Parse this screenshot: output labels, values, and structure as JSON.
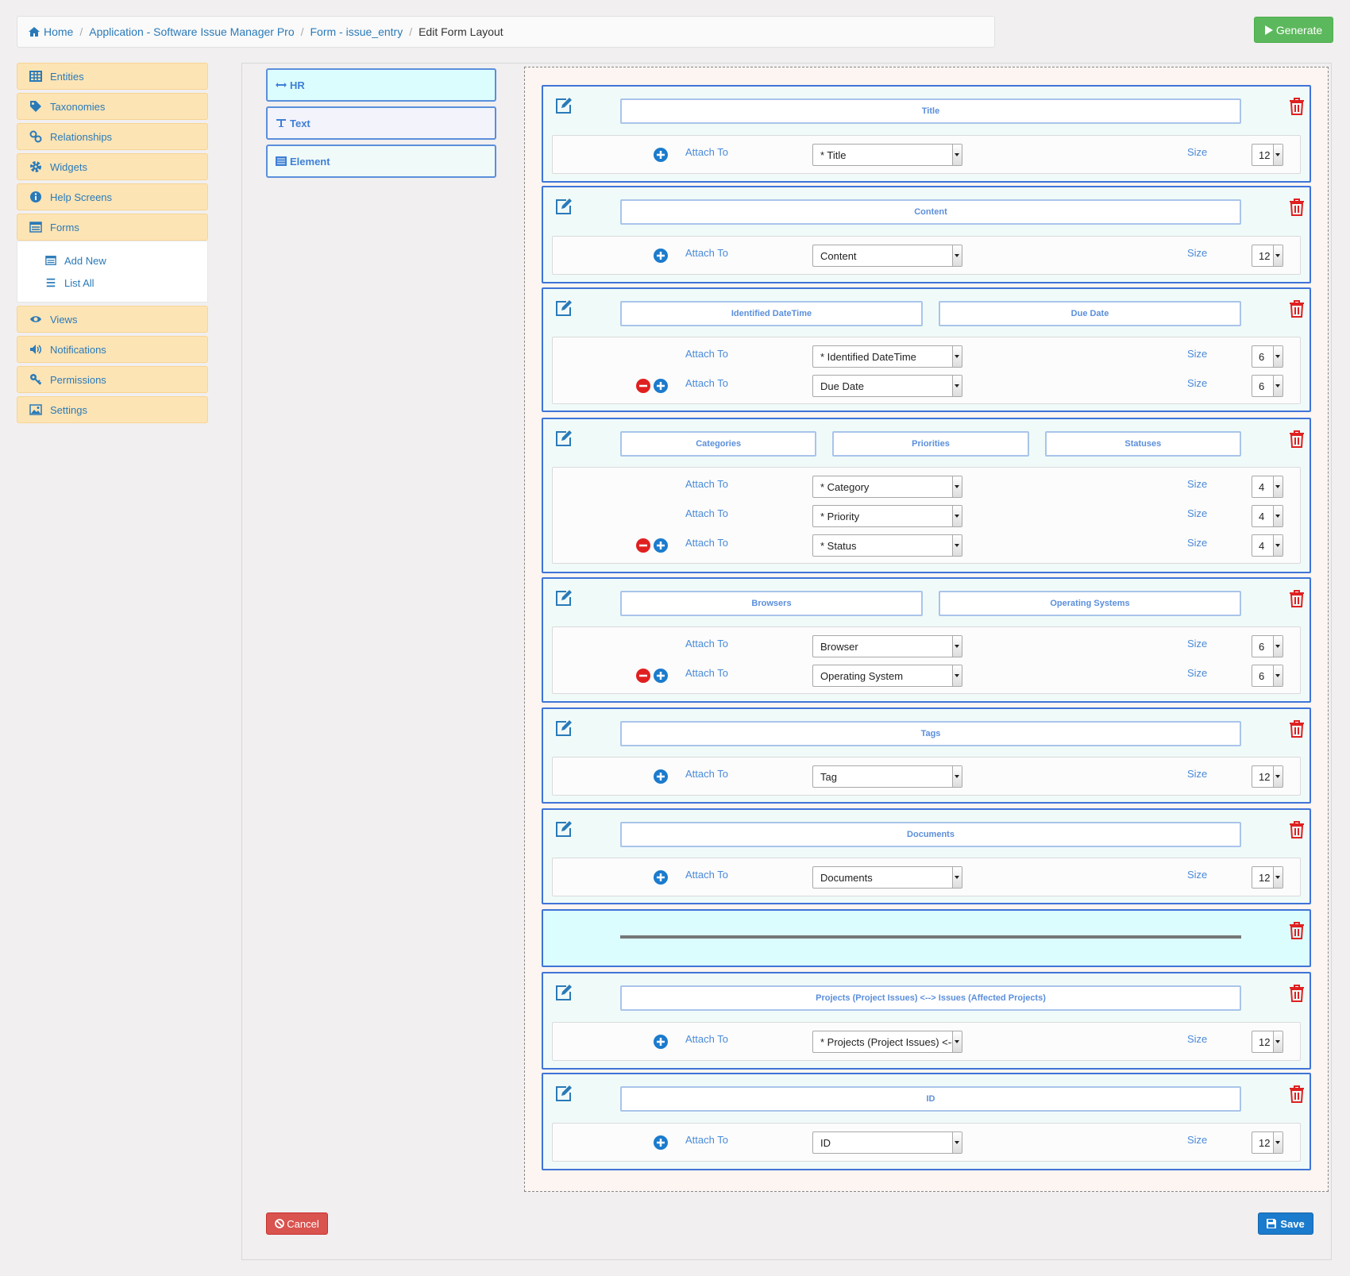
{
  "breadcrumb": {
    "home": "Home",
    "app": "Application - Software Issue Manager Pro",
    "form": "Form - issue_entry",
    "current": "Edit Form Layout"
  },
  "header": {
    "generate_label": "Generate"
  },
  "sidebar": {
    "items": [
      {
        "label": "Entities",
        "icon": "table-icon"
      },
      {
        "label": "Taxonomies",
        "icon": "tag-icon"
      },
      {
        "label": "Relationships",
        "icon": "link-icon"
      },
      {
        "label": "Widgets",
        "icon": "gear-icon"
      },
      {
        "label": "Help Screens",
        "icon": "info-icon"
      },
      {
        "label": "Forms",
        "icon": "list-alt-icon"
      }
    ],
    "forms_sub": [
      {
        "label": "Add New",
        "icon": "list-alt-icon"
      },
      {
        "label": "List All",
        "icon": "list-icon"
      }
    ],
    "items2": [
      {
        "label": "Views",
        "icon": "eye-icon"
      },
      {
        "label": "Notifications",
        "icon": "volume-icon"
      },
      {
        "label": "Permissions",
        "icon": "key-icon"
      },
      {
        "label": "Settings",
        "icon": "picture-icon"
      }
    ]
  },
  "toolbox": {
    "hr": "HR",
    "text": "Text",
    "element": "Element"
  },
  "common": {
    "attach_to": "Attach To",
    "size": "Size"
  },
  "rows": [
    {
      "labels": [
        "Title"
      ],
      "attach": [
        {
          "field": "* Title",
          "size": "12"
        }
      ]
    },
    {
      "labels": [
        "Content"
      ],
      "attach": [
        {
          "field": "Content",
          "size": "12"
        }
      ]
    },
    {
      "labels": [
        "Identified DateTime",
        "Due Date"
      ],
      "attach": [
        {
          "field": "* Identified DateTime",
          "size": "6"
        },
        {
          "field": "Due Date",
          "size": "6"
        }
      ]
    },
    {
      "labels": [
        "Categories",
        "Priorities",
        "Statuses"
      ],
      "attach": [
        {
          "field": "* Category",
          "size": "4"
        },
        {
          "field": "* Priority",
          "size": "4"
        },
        {
          "field": "* Status",
          "size": "4"
        }
      ]
    },
    {
      "labels": [
        "Browsers",
        "Operating Systems"
      ],
      "attach": [
        {
          "field": "Browser",
          "size": "6"
        },
        {
          "field": "Operating System",
          "size": "6"
        }
      ]
    },
    {
      "labels": [
        "Tags"
      ],
      "attach": [
        {
          "field": "Tag",
          "size": "12"
        }
      ]
    },
    {
      "labels": [
        "Documents"
      ],
      "attach": [
        {
          "field": "Documents",
          "size": "12"
        }
      ]
    },
    {
      "labels": [
        "Projects (Project Issues) <--> Issues (Affected Projects)"
      ],
      "attach": [
        {
          "field": "* Projects (Project Issues) <-->",
          "size": "12"
        }
      ]
    },
    {
      "labels": [
        "ID"
      ],
      "attach": [
        {
          "field": "ID",
          "size": "12"
        }
      ]
    }
  ],
  "footer": {
    "cancel_label": "Cancel",
    "save_label": "Save"
  },
  "colors": {
    "accent": "#2a7ab8",
    "row_border": "#3f74d8",
    "generate": "#5cb85c",
    "cancel": "#d9534f",
    "save": "#1b7bcd",
    "sidebar_bg": "#fde4b5"
  }
}
